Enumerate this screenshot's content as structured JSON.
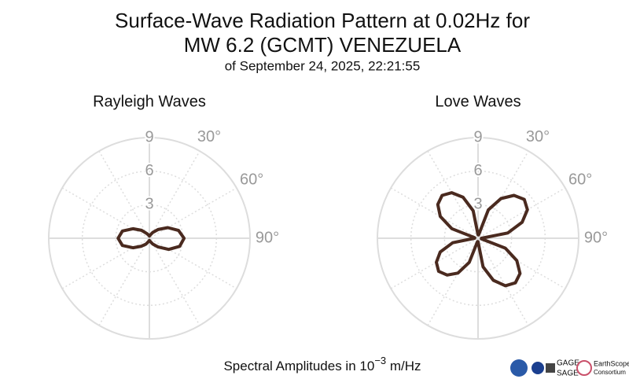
{
  "title": [
    "Surface-Wave Radiation Pattern at 0.02Hz for",
    "MW 6.2 (GCMT) VENEZUELA"
  ],
  "subtitle": "of September 24, 2025, 22:21:55",
  "axis_label": {
    "prefix": "Spectral Amplitudes in 10",
    "exponent": "−3",
    "suffix": " m/Hz"
  },
  "logos": [
    "GAGE",
    "SAGE",
    "EarthScope",
    "Consortium"
  ],
  "chart_data": [
    {
      "type": "polar",
      "title": "Rayleigh Waves",
      "color": "#4a2a1f",
      "theta": [
        0,
        15,
        30,
        45,
        60,
        75,
        90,
        105,
        120,
        135,
        150,
        165,
        180,
        195,
        210,
        225,
        240,
        255,
        270,
        285,
        300,
        315,
        330,
        345
      ],
      "r": [
        0.2,
        0.3,
        0.6,
        1.1,
        1.9,
        2.7,
        3.1,
        2.8,
        2.0,
        1.1,
        0.6,
        0.3,
        0.2,
        0.3,
        0.6,
        1.0,
        1.7,
        2.5,
        2.8,
        2.5,
        1.7,
        1.0,
        0.5,
        0.3
      ],
      "rlim": [
        0,
        9
      ],
      "rticks": [
        3,
        6,
        9
      ],
      "thetaticks": [
        {
          "value": 30,
          "label": "30°"
        },
        {
          "value": 60,
          "label": "60°"
        },
        {
          "value": 90,
          "label": "90°"
        }
      ]
    },
    {
      "type": "polar",
      "title": "Love Waves",
      "color": "#4a2a1f",
      "theta": [
        0,
        10,
        20,
        30,
        40,
        50,
        60,
        70,
        80,
        90,
        100,
        110,
        120,
        130,
        140,
        150,
        160,
        170,
        180,
        190,
        200,
        210,
        220,
        230,
        240,
        250,
        260,
        270,
        280,
        290,
        300,
        310,
        320,
        330,
        340,
        350
      ],
      "r": [
        0.3,
        0.3,
        2.7,
        4.1,
        5.0,
        5.4,
        5.1,
        4.2,
        2.7,
        0.3,
        0.3,
        2.6,
        4.0,
        4.9,
        5.2,
        4.9,
        4.0,
        2.6,
        0.3,
        0.3,
        2.3,
        3.6,
        4.3,
        4.6,
        4.3,
        3.6,
        2.3,
        0.3,
        0.3,
        2.5,
        3.9,
        4.7,
        5.0,
        4.7,
        3.9,
        2.5
      ],
      "rlim": [
        0,
        9
      ],
      "rticks": [
        3,
        6,
        9
      ],
      "thetaticks": [
        {
          "value": 30,
          "label": "30°"
        },
        {
          "value": 60,
          "label": "60°"
        },
        {
          "value": 90,
          "label": "90°"
        }
      ]
    }
  ]
}
